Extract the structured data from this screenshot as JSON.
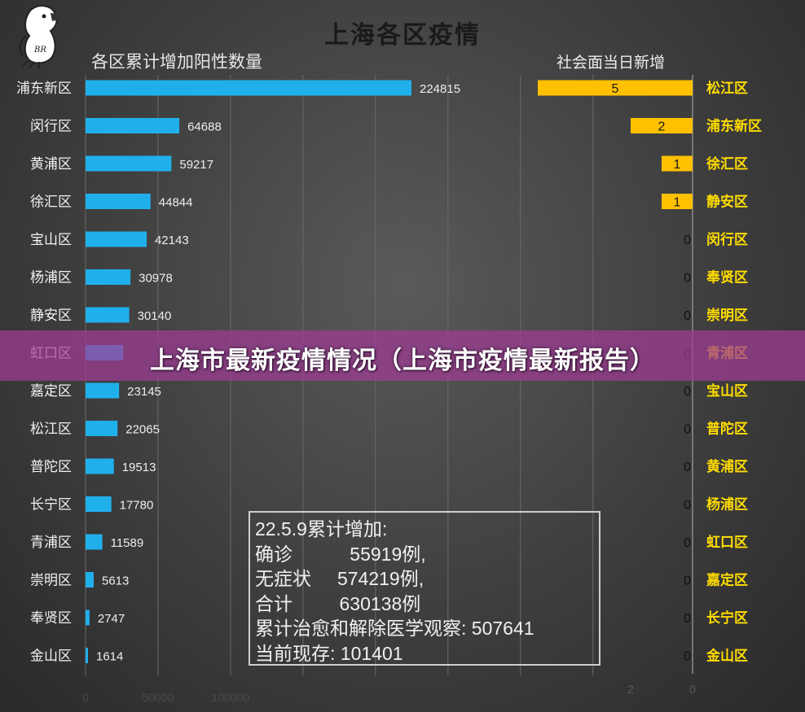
{
  "title": "上海各区疫情",
  "banner": "上海市最新疫情情况（上海市疫情最新报告）",
  "logo_text": "BR",
  "chart_data": [
    {
      "type": "bar",
      "orientation": "horizontal",
      "title": "各区累计增加阳性数量",
      "categories": [
        "浦东新区",
        "闵行区",
        "黄浦区",
        "徐汇区",
        "宝山区",
        "杨浦区",
        "静安区",
        "虹口区",
        "嘉定区",
        "松江区",
        "普陀区",
        "长宁区",
        "青浦区",
        "崇明区",
        "奉贤区",
        "金山区"
      ],
      "values": [
        224815,
        64688,
        59217,
        44844,
        42143,
        30978,
        30140,
        26000,
        23145,
        22065,
        19513,
        17780,
        11589,
        5613,
        2747,
        1614
      ],
      "value_labels": [
        "224815",
        "64688",
        "59217",
        "44844",
        "42143",
        "30978",
        "30140",
        "",
        "23145",
        "22065",
        "19513",
        "17780",
        "11589",
        "5613",
        "2747",
        "1614"
      ],
      "x_ticks": [
        "0",
        "50000",
        "100000"
      ],
      "xlim": [
        0,
        350000
      ],
      "grid": true,
      "bar_color": "#1fb0ec"
    },
    {
      "type": "bar",
      "orientation": "horizontal",
      "direction": "right-to-left",
      "title": "社会面当日新增",
      "categories": [
        "松江区",
        "浦东新区",
        "徐汇区",
        "静安区",
        "闵行区",
        "奉贤区",
        "崇明区",
        "青浦区",
        "宝山区",
        "普陀区",
        "黄浦区",
        "杨浦区",
        "虹口区",
        "嘉定区",
        "长宁区",
        "金山区"
      ],
      "values": [
        5,
        2,
        1,
        1,
        0,
        0,
        0,
        0,
        0,
        0,
        0,
        0,
        0,
        0,
        0,
        0
      ],
      "x_ticks": [
        "2",
        "0"
      ],
      "xlim": [
        0,
        5
      ],
      "bar_color": "#ffc000",
      "label_color": "#ffdd00"
    }
  ],
  "note": {
    "lines": [
      "22.5.9累计增加:",
      "确诊           55919例,",
      "无症状     574219例,",
      "合计         630138例",
      "累计治愈和解除医学观察: 507641",
      "当前现存: 101401"
    ]
  }
}
